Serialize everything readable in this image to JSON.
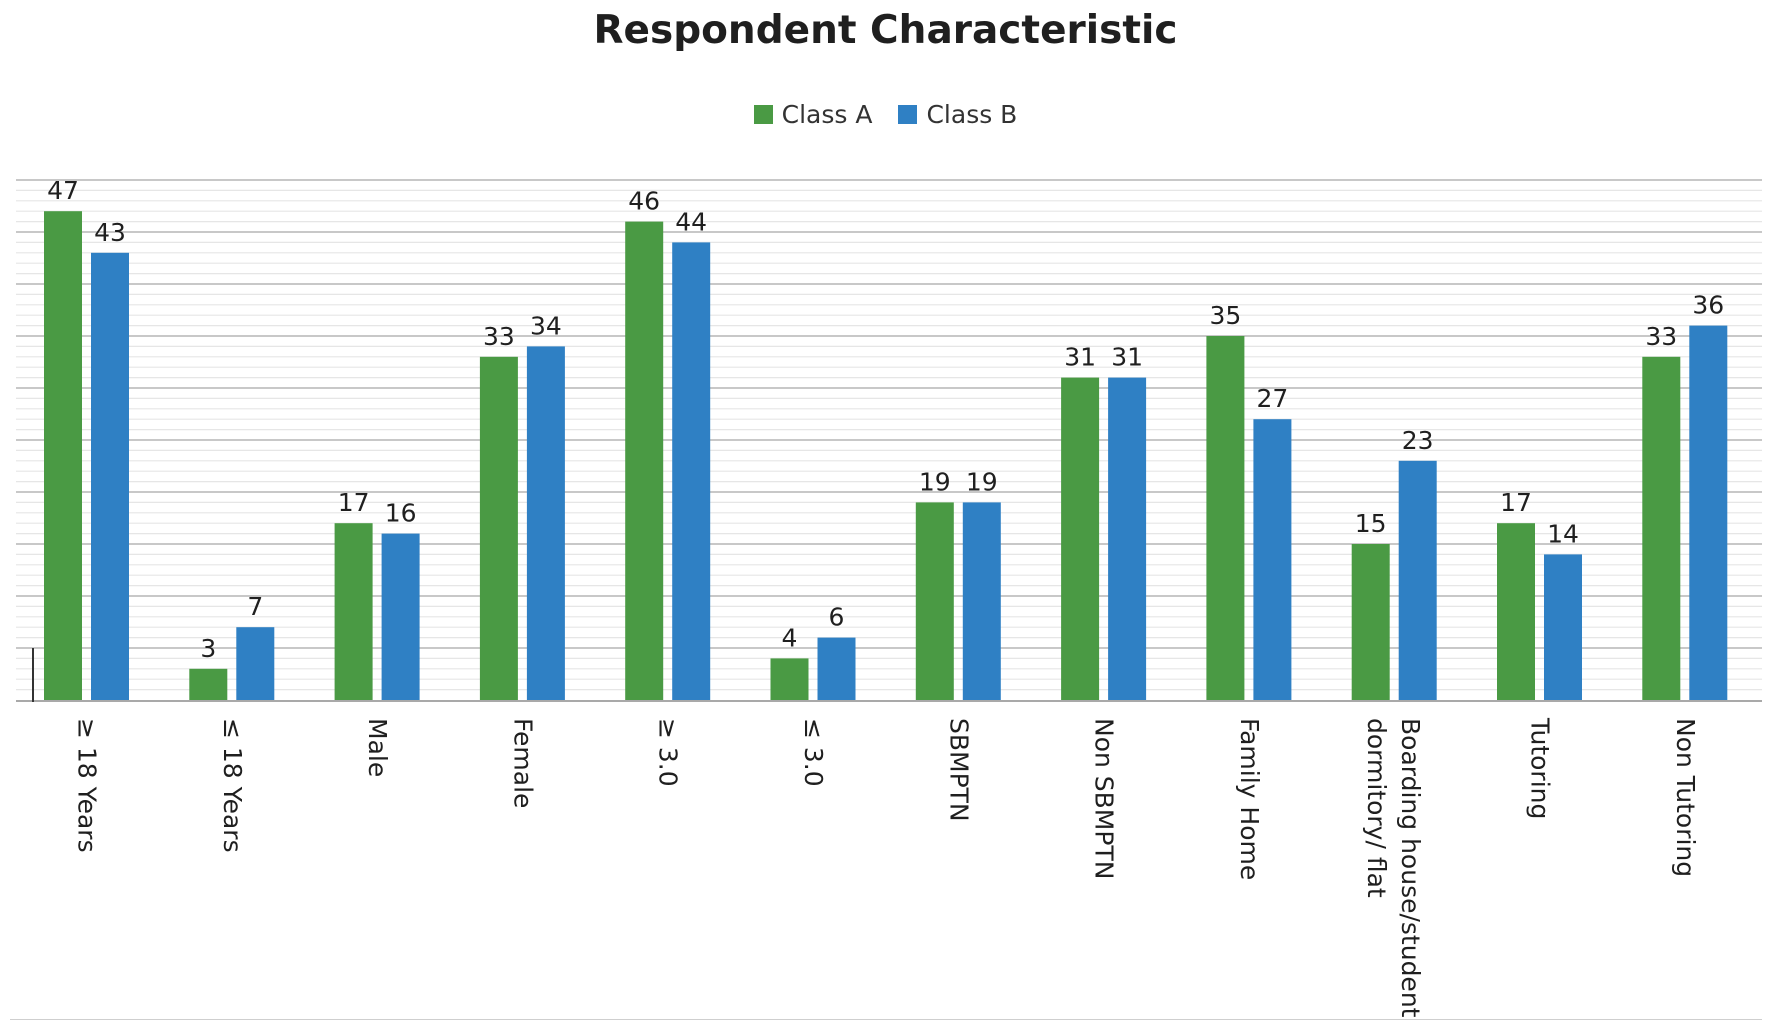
{
  "chart_data": {
    "type": "bar",
    "title": "Respondent Characteristic",
    "xlabel": "",
    "ylabel": "",
    "ylim": [
      0,
      50
    ],
    "grid": true,
    "legend_position": "top-center",
    "categories": [
      "≥ 18 Years",
      "≤ 18 Years",
      "Male",
      "Female",
      "≥ 3.0",
      "≤ 3.0",
      "SBMPTN",
      "Non SBMPTN",
      "Family Home",
      "Boarding house/student dormitory/ flat",
      "Tutoring",
      "Non Tutoring"
    ],
    "series": [
      {
        "name": "Class A",
        "color": "#4a9a44",
        "values": [
          47,
          3,
          17,
          33,
          46,
          4,
          19,
          31,
          35,
          15,
          17,
          33
        ]
      },
      {
        "name": "Class B",
        "color": "#2f80c4",
        "values": [
          43,
          7,
          16,
          34,
          44,
          6,
          19,
          31,
          27,
          23,
          14,
          36
        ]
      }
    ]
  }
}
